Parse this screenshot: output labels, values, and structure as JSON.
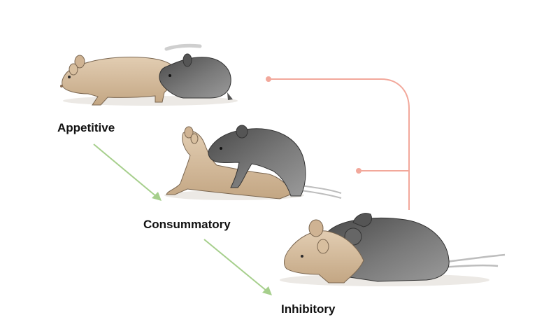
{
  "stages": [
    {
      "label": "Appetitive"
    },
    {
      "label": "Consummatory"
    },
    {
      "label": "Inhibitory"
    }
  ],
  "colors": {
    "progression_arrow": "#a6cf8c",
    "inhibition_line": "#f2a89b",
    "tan_mouse": "#d9c1a3",
    "tan_mouse_shade": "#b89b7c",
    "gray_mouse": "#6e6e6e",
    "gray_mouse_dark": "#444444",
    "shadow": "#e9e6e2"
  }
}
